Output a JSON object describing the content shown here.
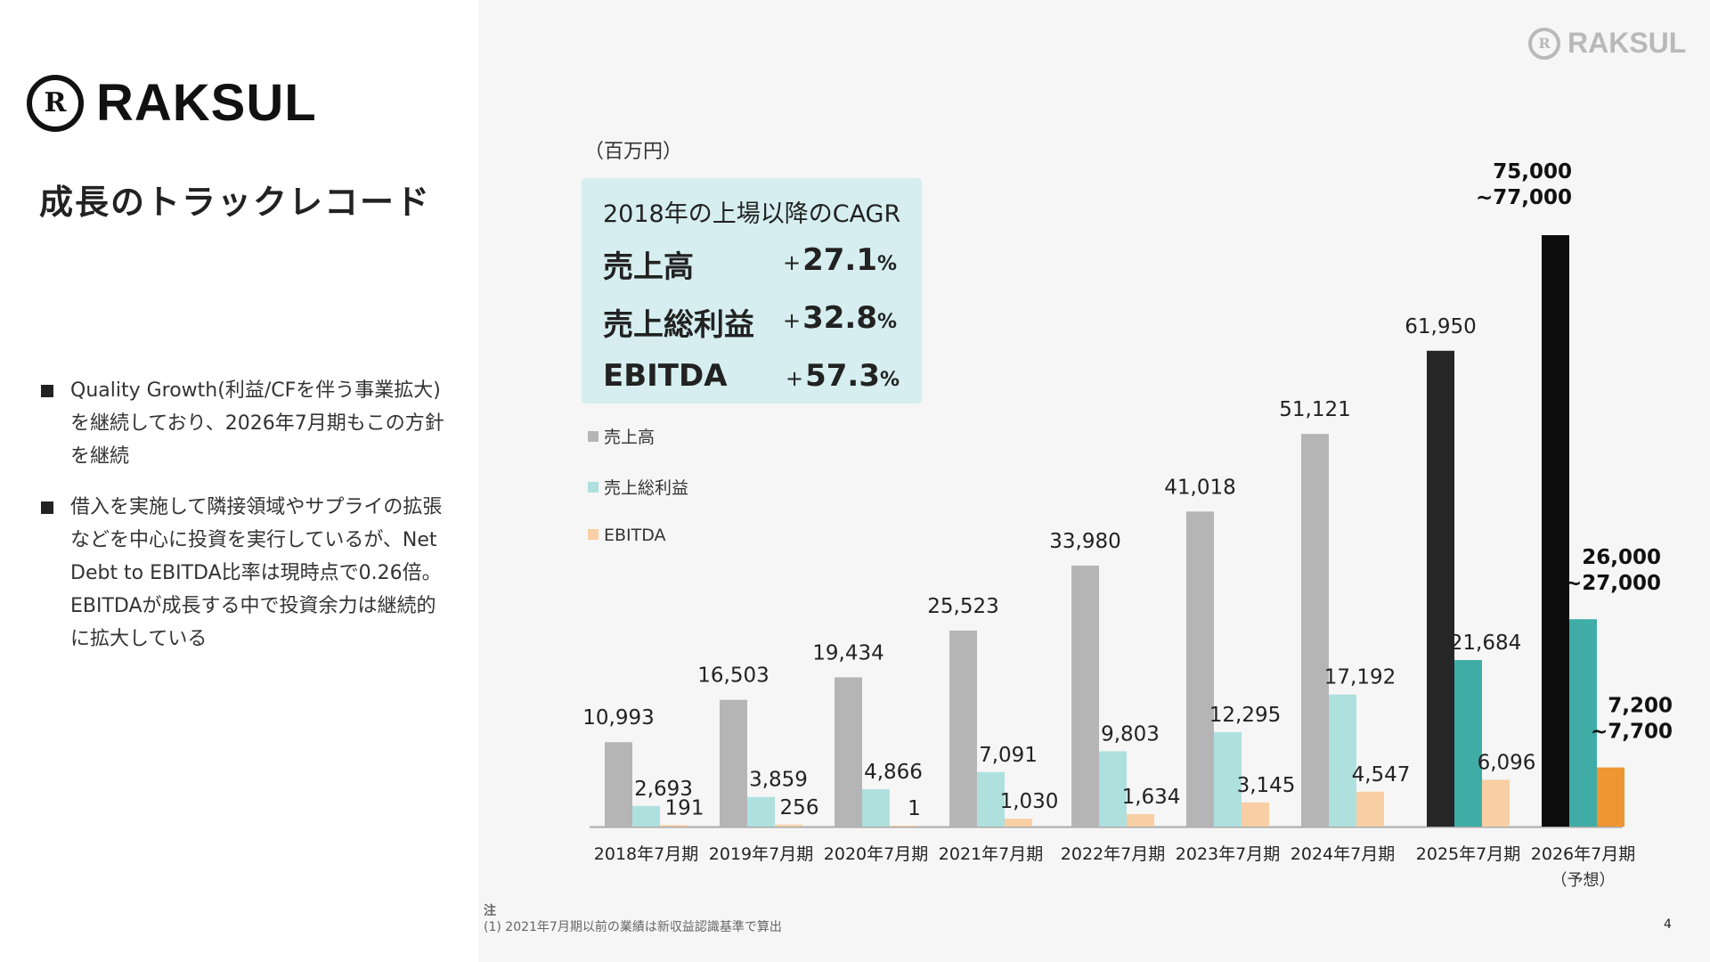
{
  "brand": {
    "name": "RAKSUL",
    "mark_glyph": "R"
  },
  "page": {
    "title": "成長のトラックレコード",
    "number": "4"
  },
  "bullets": [
    "Quality Growth(利益/CFを伴う事業拡大)を継続しており、2026年7月期もこの方針を継続",
    "借入を実施して隣接領域やサプライの拡張などを中心に投資を実行しているが、Net Debt to EBITDA比率は現時点で0.26倍。EBITDAが成長する中で投資余力は継続的に拡大している"
  ],
  "cagr": {
    "title": "2018年の上場以降のCAGR",
    "rows": [
      {
        "name": "売上高",
        "plus": "+",
        "value": "27.1",
        "pct": "%"
      },
      {
        "name": "売上総利益",
        "plus": "+",
        "value": "32.8",
        "pct": "%"
      },
      {
        "name": "EBITDA",
        "plus": "+",
        "value": "57.3",
        "pct": "%"
      }
    ]
  },
  "note": {
    "head": "注",
    "text": "(1) 2021年7月期以前の業績は新収益認識基準で算出"
  },
  "chart_data": {
    "type": "bar",
    "title": "",
    "unit_label": "（百万円）",
    "xlabel": "",
    "ylabel": "",
    "ylim": [
      0,
      77000
    ],
    "grid": false,
    "legend_position": "top-left",
    "categories": [
      "2018年7月期",
      "2019年7月期",
      "2020年7月期",
      "2021年7月期",
      "2022年7月期",
      "2023年7月期",
      "2024年7月期",
      "2025年7月期",
      "2026年7月期"
    ],
    "category_sublabels": [
      "",
      "",
      "",
      "",
      "",
      "",
      "",
      "",
      "（予想）"
    ],
    "series": [
      {
        "name": "売上高",
        "color": "#b5b5b5",
        "values": [
          10993,
          16503,
          19434,
          25523,
          33980,
          41018,
          51121,
          61950,
          77000
        ],
        "labels": [
          "10,993",
          "16,503",
          "19,434",
          "25,523",
          "33,980",
          "41,018",
          "51,121",
          "61,950",
          "75,000\n~77,000"
        ],
        "highlight_colors": {
          "7": "#262626",
          "8": "#0d0d0d"
        }
      },
      {
        "name": "売上総利益",
        "color": "#aee0de",
        "values": [
          2693,
          3859,
          4866,
          7091,
          9803,
          12295,
          17192,
          21684,
          27000
        ],
        "labels": [
          "2,693",
          "3,859",
          "4,866",
          "7,091",
          "9,803",
          "12,295",
          "17,192",
          "21,684",
          "26,000\n~27,000"
        ],
        "highlight_colors": {
          "7": "#3fada6",
          "8": "#3fada6"
        }
      },
      {
        "name": "EBITDA",
        "color": "#f8cfa4",
        "values": [
          191,
          256,
          1,
          1030,
          1634,
          3145,
          4547,
          6096,
          7700
        ],
        "labels": [
          "191",
          "256",
          "1",
          "1,030",
          "1,634",
          "3,145",
          "4,547",
          "6,096",
          "7,200\n~7,700"
        ],
        "highlight_colors": {
          "8": "#ee9632"
        }
      }
    ],
    "forecast_ranges": {
      "売上高": [
        75000,
        77000
      ],
      "売上総利益": [
        26000,
        27000
      ],
      "EBITDA": [
        7200,
        7700
      ]
    }
  }
}
